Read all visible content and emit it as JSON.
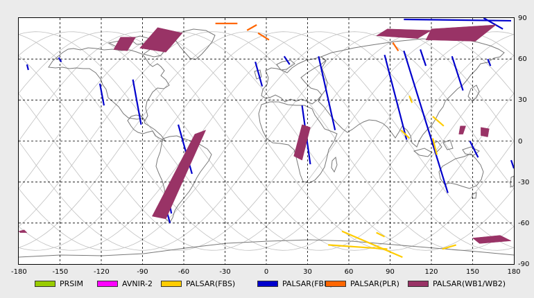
{
  "chart_data": {
    "type": "scatter",
    "title": "",
    "xlabel": "",
    "ylabel": "",
    "xlim": [
      -180,
      180
    ],
    "ylim": [
      -90,
      90
    ],
    "grid": true,
    "x_ticks": [
      -180,
      -150,
      -120,
      -90,
      -60,
      -30,
      0,
      30,
      60,
      90,
      120,
      150,
      180
    ],
    "y_ticks": [
      90,
      60,
      30,
      0,
      -30,
      -60,
      -90
    ],
    "legend_position": "bottom",
    "legend": [
      {
        "name": "PRSIM",
        "color": "#99cc00"
      },
      {
        "name": "AVNIR-2",
        "color": "#ff00ff"
      },
      {
        "name": "PALSAR(FBS)",
        "color": "#ffcc00"
      },
      {
        "name": "PALSAR(FBD)",
        "color": "#0000cc"
      },
      {
        "name": "PALSAR(PLR)",
        "color": "#ff6600"
      },
      {
        "name": "PALSAR(WB1/WB2)",
        "color": "#993366"
      }
    ],
    "series": [
      {
        "name": "PALSAR(FBD)",
        "color": "#0000cc",
        "strips": [
          [
            [
              -174,
              56
            ],
            [
              -173,
              52
            ]
          ],
          [
            [
              -151,
              61
            ],
            [
              -149,
              58
            ]
          ],
          [
            [
              -121,
              42
            ],
            [
              -118,
              26
            ]
          ],
          [
            [
              -97,
              45
            ],
            [
              -91,
              12
            ]
          ],
          [
            [
              -64,
              12
            ],
            [
              -54,
              -24
            ]
          ],
          [
            [
              -72,
              -37
            ],
            [
              -69,
              -53
            ]
          ],
          [
            [
              -75,
              -42
            ],
            [
              -70,
              -60
            ]
          ],
          [
            [
              -8,
              58
            ],
            [
              -3,
              40
            ]
          ],
          [
            [
              13,
              62
            ],
            [
              17,
              56
            ]
          ],
          [
            [
              26,
              26
            ],
            [
              32,
              -17
            ]
          ],
          [
            [
              38,
              62
            ],
            [
              50,
              8
            ]
          ],
          [
            [
              86,
              63
            ],
            [
              102,
              1
            ]
          ],
          [
            [
              100,
              66
            ],
            [
              132,
              -38
            ]
          ],
          [
            [
              112,
              67
            ],
            [
              116,
              55
            ]
          ],
          [
            [
              135,
              62
            ],
            [
              143,
              37
            ]
          ],
          [
            [
              161,
              60
            ],
            [
              163,
              55
            ]
          ],
          [
            [
              148,
              0
            ],
            [
              154,
              -12
            ]
          ],
          [
            [
              178,
              -14
            ],
            [
              180,
              -20
            ]
          ],
          [
            [
              100,
              89
            ],
            [
              178,
              88
            ]
          ],
          [
            [
              158,
              90
            ],
            [
              172,
              82
            ]
          ]
        ]
      },
      {
        "name": "PALSAR(FBS)",
        "color": "#ffcc00",
        "strips": [
          [
            [
              55,
              -66
            ],
            [
              99,
              -85
            ]
          ],
          [
            [
              80,
              -67
            ],
            [
              86,
              -70
            ]
          ],
          [
            [
              45,
              -76
            ],
            [
              88,
              -79
            ]
          ],
          [
            [
              104,
              33
            ],
            [
              106,
              28
            ]
          ],
          [
            [
              98,
              8
            ],
            [
              104,
              2
            ]
          ],
          [
            [
              121,
              18
            ],
            [
              129,
              11
            ]
          ],
          [
            [
              121,
              2
            ],
            [
              124,
              -10
            ]
          ],
          [
            [
              128,
              -79
            ],
            [
              138,
              -76
            ]
          ]
        ]
      },
      {
        "name": "PALSAR(PLR)",
        "color": "#ff6600",
        "strips": [
          [
            [
              -37,
              86
            ],
            [
              -21,
              86
            ]
          ],
          [
            [
              -6,
              79
            ],
            [
              2,
              74
            ]
          ],
          [
            [
              -14,
              81
            ],
            [
              -7,
              85
            ]
          ],
          [
            [
              92,
              72
            ],
            [
              96,
              66
            ]
          ]
        ]
      },
      {
        "name": "PALSAR(WB1/WB2)",
        "color": "#993366",
        "regions": [
          [
            [
              -106,
              76
            ],
            [
              -95,
              76
            ],
            [
              -101,
              66
            ],
            [
              -111,
              67
            ]
          ],
          [
            [
              -79,
              83
            ],
            [
              -61,
              79
            ],
            [
              -73,
              65
            ],
            [
              -92,
              68
            ]
          ],
          [
            [
              -52,
              5
            ],
            [
              -44,
              8
            ],
            [
              -73,
              -57
            ],
            [
              -83,
              -55
            ]
          ],
          [
            [
              26,
              12
            ],
            [
              32,
              10
            ],
            [
              26,
              -14
            ],
            [
              20,
              -11
            ]
          ],
          [
            [
              88,
              82
            ],
            [
              120,
              81
            ],
            [
              110,
              75
            ],
            [
              80,
              77
            ]
          ],
          [
            [
              120,
              82
            ],
            [
              167,
              85
            ],
            [
              152,
              73
            ],
            [
              116,
              74
            ]
          ],
          [
            [
              141,
              11
            ],
            [
              145,
              11
            ],
            [
              143,
              5
            ],
            [
              140,
              5
            ]
          ],
          [
            [
              156,
              10
            ],
            [
              162,
              9
            ],
            [
              161,
              3
            ],
            [
              156,
              4
            ]
          ],
          [
            [
              150,
              -71
            ],
            [
              170,
              -69
            ],
            [
              178,
              -73
            ],
            [
              155,
              -75
            ]
          ],
          [
            [
              -180,
              -66
            ],
            [
              -176,
              -65
            ],
            [
              -174,
              -67
            ],
            [
              -179,
              -67
            ]
          ]
        ]
      }
    ]
  },
  "map": {
    "land_outline_color": "#777777",
    "orbit_track_color": "#c0c0c0",
    "grid_color": "#000000"
  }
}
